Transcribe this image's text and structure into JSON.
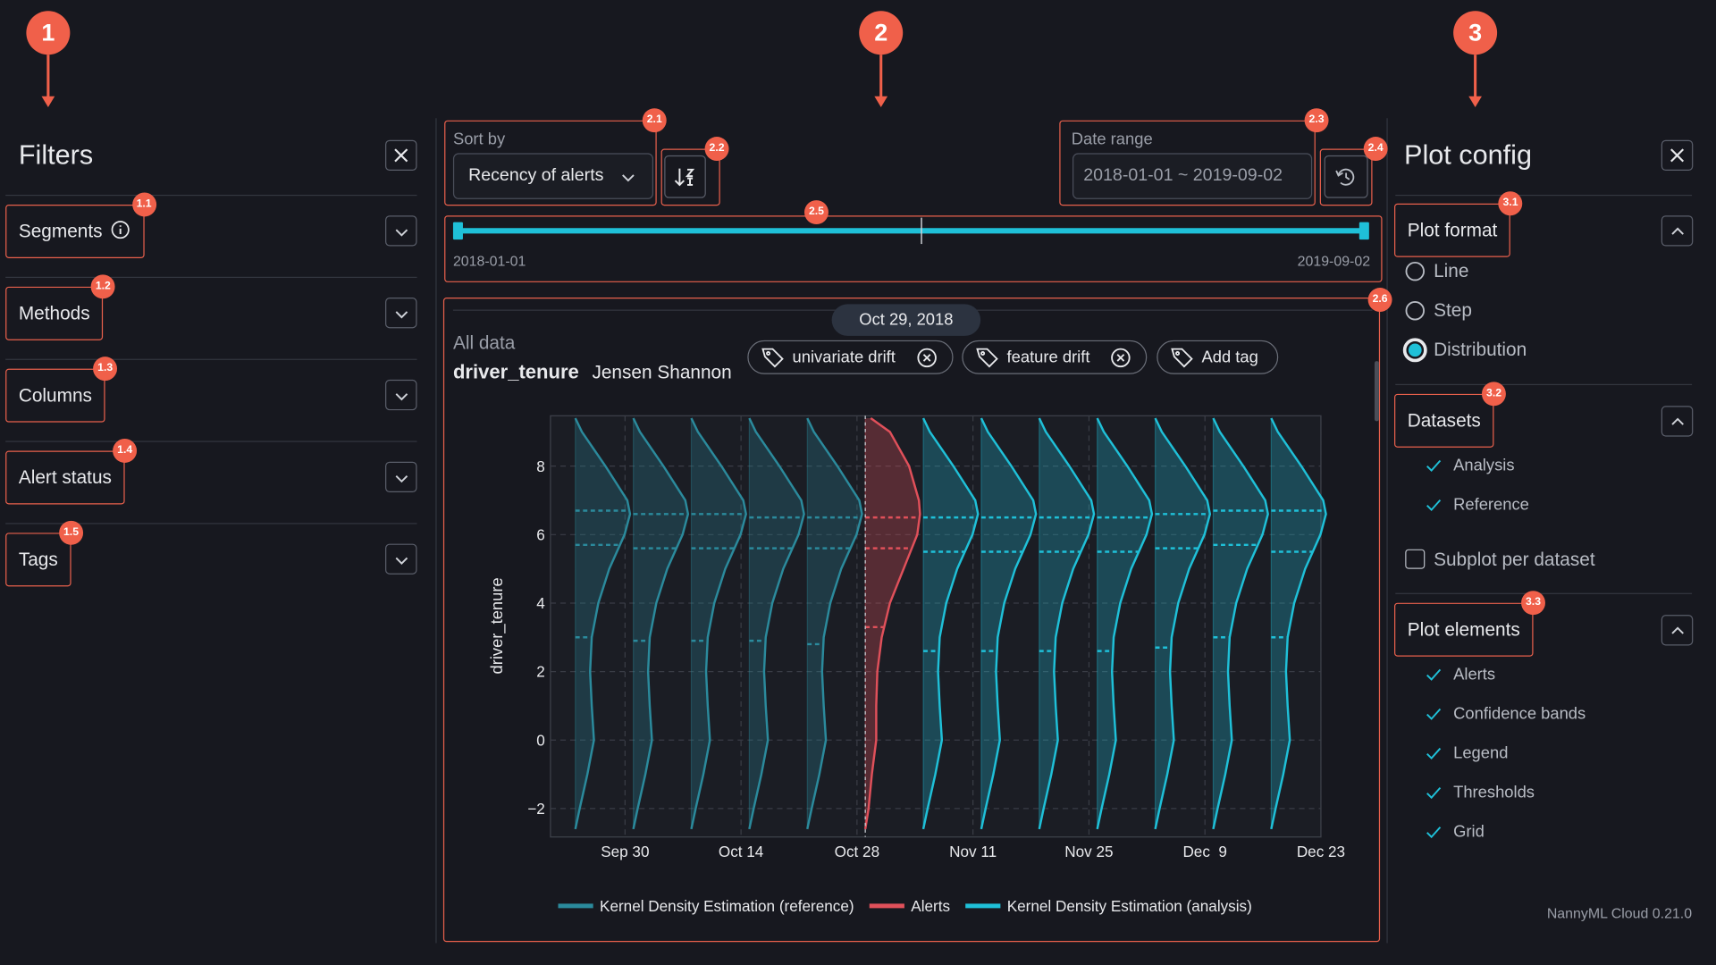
{
  "annotations": [
    "1",
    "2",
    "3"
  ],
  "filters": {
    "title": "Filters",
    "items": [
      {
        "label": "Segments",
        "badge": "1.1",
        "info": true
      },
      {
        "label": "Methods",
        "badge": "1.2",
        "info": false
      },
      {
        "label": "Columns",
        "badge": "1.3",
        "info": false
      },
      {
        "label": "Alert status",
        "badge": "1.4",
        "info": false
      },
      {
        "label": "Tags",
        "badge": "1.5",
        "info": false
      }
    ]
  },
  "toolbar": {
    "sort": {
      "badge": "2.1",
      "label": "Sort by",
      "value": "Recency of alerts"
    },
    "sort_dir_badge": "2.2",
    "date": {
      "badge": "2.3",
      "label": "Date range",
      "value": "2018-01-01 ~ 2019-09-02"
    },
    "reset_badge": "2.4",
    "slider": {
      "badge": "2.5",
      "start": "2018-01-01",
      "end": "2019-09-02"
    },
    "panel_badge": "2.6"
  },
  "panel": {
    "dataset": "All data",
    "column": "driver_tenure",
    "method": "Jensen Shannon",
    "tags": [
      "univariate drift",
      "feature drift"
    ],
    "add_tag": "Add tag"
  },
  "chart_data": {
    "type": "kde",
    "hover_label": "Oct 29, 2018",
    "ylabel": "driver_tenure",
    "ylim": [
      -2.83,
      9.47
    ],
    "yticks": [
      {
        "value": -2,
        "label": "−2"
      },
      0,
      2,
      4,
      6,
      8
    ],
    "xlim": [
      "2018-09-21",
      "2018-12-23"
    ],
    "xticks": [
      {
        "value": "2018-09-30",
        "label": "Sep 30"
      },
      {
        "value": "2018-10-14",
        "label": "Oct 14"
      },
      {
        "value": "2018-10-28",
        "label": "Oct 28"
      },
      {
        "value": "2018-11-11",
        "label": "Nov 11"
      },
      {
        "value": "2018-11-25",
        "label": "Nov 25"
      },
      {
        "value": "2018-12-09",
        "label": "Dec  9"
      },
      {
        "value": "2018-12-23",
        "label": "Dec 23"
      }
    ],
    "grid": true,
    "density_y": [
      -2.6,
      -2,
      -1,
      0,
      1,
      2,
      3,
      4,
      5,
      6,
      6.6,
      7,
      8,
      9,
      9.4
    ],
    "series": [
      {
        "name": "Kernel Density Estimation (reference)",
        "color": "#2b8a9c",
        "x": [
          "2018-09-24",
          "2018-10-01",
          "2018-10-08",
          "2018-10-15",
          "2018-10-22"
        ],
        "density": [
          0,
          0.08,
          0.22,
          0.34,
          0.3,
          0.27,
          0.3,
          0.42,
          0.62,
          0.9,
          1,
          0.95,
          0.55,
          0.12,
          0
        ],
        "quartiles": [
          [
            3.0,
            5.7,
            6.7
          ],
          [
            2.9,
            5.6,
            6.6
          ],
          [
            2.9,
            5.6,
            6.6
          ],
          [
            2.9,
            5.6,
            6.5
          ],
          [
            2.8,
            5.6,
            6.5
          ]
        ]
      },
      {
        "name": "Alerts",
        "color": "#e0505a",
        "x": [
          "2018-10-29"
        ],
        "density": [
          0,
          0.06,
          0.12,
          0.2,
          0.2,
          0.22,
          0.3,
          0.45,
          0.7,
          0.95,
          1,
          0.98,
          0.8,
          0.45,
          0.1
        ],
        "quartiles": [
          [
            3.3,
            5.6,
            6.5
          ]
        ]
      },
      {
        "name": "Kernel Density Estimation (analysis)",
        "color": "#1fc0d8",
        "x": [
          "2018-11-05",
          "2018-11-12",
          "2018-11-19",
          "2018-11-26",
          "2018-12-03",
          "2018-12-10",
          "2018-12-17"
        ],
        "density": [
          0,
          0.08,
          0.22,
          0.34,
          0.3,
          0.27,
          0.3,
          0.42,
          0.62,
          0.9,
          1,
          0.95,
          0.55,
          0.12,
          0
        ],
        "quartiles": [
          [
            2.6,
            5.5,
            6.5
          ],
          [
            2.6,
            5.5,
            6.5
          ],
          [
            2.6,
            5.5,
            6.5
          ],
          [
            2.6,
            5.5,
            6.5
          ],
          [
            2.7,
            5.6,
            6.6
          ],
          [
            3.0,
            5.7,
            6.7
          ],
          [
            3.0,
            5.5,
            6.7
          ]
        ]
      }
    ]
  },
  "plot_config": {
    "title": "Plot config",
    "format": {
      "title": "Plot format",
      "badge": "3.1",
      "options": [
        "Line",
        "Step",
        "Distribution"
      ],
      "selected": 2
    },
    "datasets": {
      "title": "Datasets",
      "badge": "3.2",
      "checks": [
        "Analysis",
        "Reference"
      ]
    },
    "subplot": {
      "label": "Subplot per dataset",
      "checked": false
    },
    "elements": {
      "title": "Plot elements",
      "badge": "3.3",
      "checks": [
        "Alerts",
        "Confidence bands",
        "Legend",
        "Thresholds",
        "Grid"
      ]
    }
  },
  "version": "NannyML Cloud 0.21.0"
}
